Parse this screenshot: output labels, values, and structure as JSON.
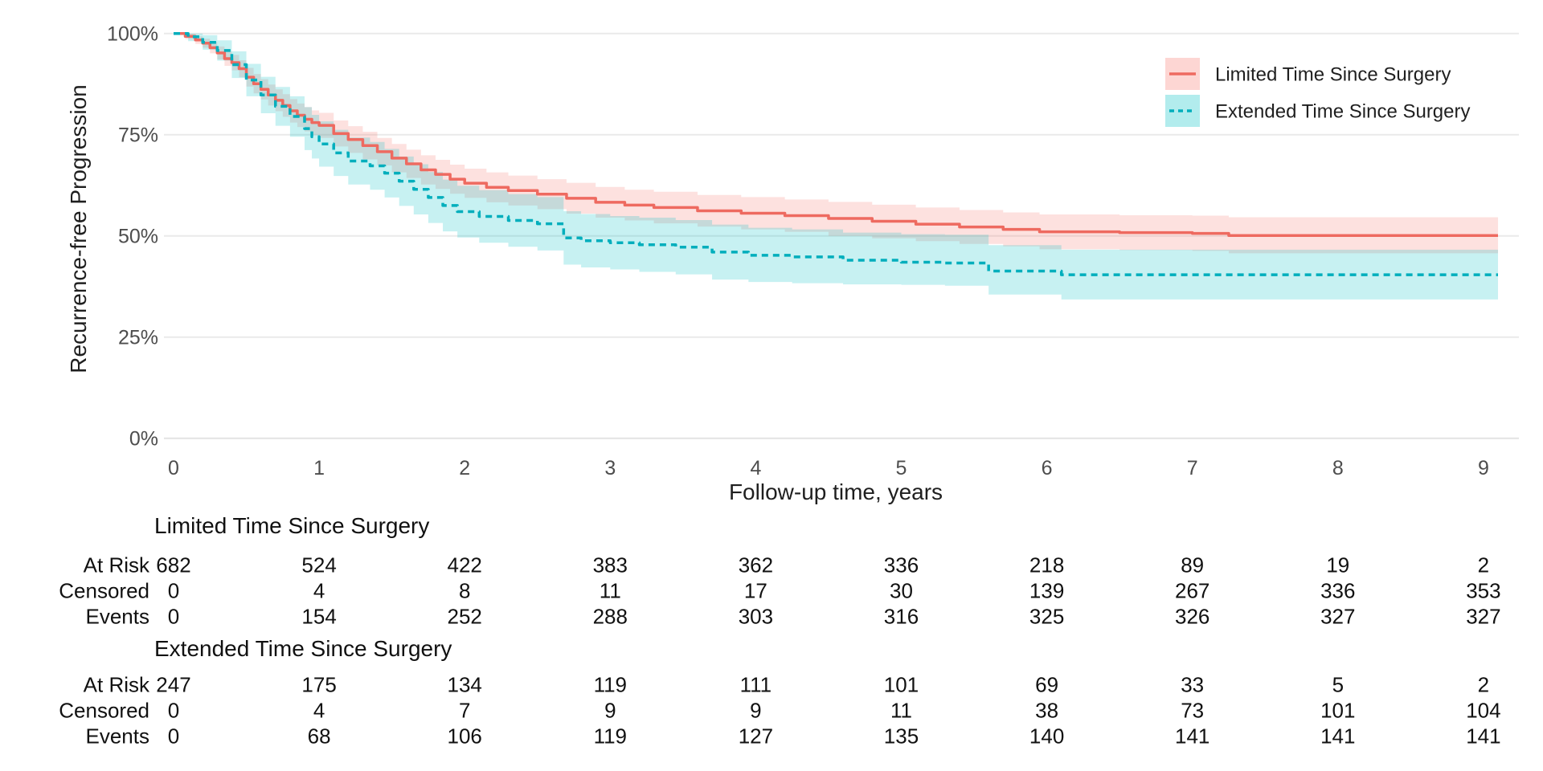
{
  "figure": {
    "title": "",
    "y_axis": {
      "title": "Recurrence-free Progression",
      "ticks": [
        "100%",
        "75%",
        "50%",
        "25%",
        "0%"
      ],
      "tick_values": [
        100,
        75,
        50,
        25,
        0
      ]
    },
    "x_axis": {
      "title": "Follow-up time, years",
      "ticks": [
        "0",
        "1",
        "2",
        "3",
        "4",
        "5",
        "6",
        "7",
        "8",
        "9"
      ],
      "tick_values": [
        0,
        1,
        2,
        3,
        4,
        5,
        6,
        7,
        8,
        9
      ]
    },
    "legend": [
      {
        "label": "Limited Time Since Surgery",
        "line_style": "solid"
      },
      {
        "label": "Extended Time Since Surgery",
        "line_style": "dashed"
      }
    ],
    "colors": {
      "limited_line": "#EE6A60",
      "limited_band": "rgba(248,118,109,0.22)",
      "extended_line": "#00AEBC",
      "extended_band": "rgba(0,191,196,0.22)",
      "grid": "#EAEAEA",
      "baseline_grid": "#E3E3E3",
      "axis_text": "#4D4D4D",
      "text": "#111111"
    }
  },
  "chart_data": {
    "type": "line",
    "subtype": "kaplan-meier-step-with-confidence-bands",
    "title": "",
    "xlabel": "Follow-up time, years",
    "ylabel": "Recurrence-free Progression",
    "xlim": [
      0,
      9.25
    ],
    "ylim": [
      0,
      100
    ],
    "y_unit": "percent",
    "grid": "horizontal-only",
    "legend_position": "top-right",
    "series": [
      {
        "name": "Limited Time Since Surgery",
        "color": "#EE6A60",
        "band_color": "rgba(248,118,109,0.22)",
        "dash": "solid",
        "points_format": [
          "time_years",
          "survival_pct",
          "ci_low_pct",
          "ci_high_pct"
        ],
        "points": [
          [
            0,
            100,
            100,
            100
          ],
          [
            0.08,
            99.3,
            98.6,
            99.9
          ],
          [
            0.15,
            98.4,
            97.4,
            99.3
          ],
          [
            0.2,
            97.6,
            96.5,
            98.7
          ],
          [
            0.25,
            96.5,
            95.1,
            97.9
          ],
          [
            0.3,
            95.2,
            93.6,
            96.8
          ],
          [
            0.35,
            93.8,
            92.0,
            95.6
          ],
          [
            0.4,
            92.8,
            90.9,
            94.7
          ],
          [
            0.45,
            91.3,
            89.2,
            93.4
          ],
          [
            0.5,
            89.2,
            86.9,
            91.5
          ],
          [
            0.55,
            87.6,
            85.2,
            90.0
          ],
          [
            0.6,
            86.2,
            83.7,
            88.7
          ],
          [
            0.65,
            84.8,
            82.2,
            87.4
          ],
          [
            0.7,
            83.5,
            80.8,
            86.2
          ],
          [
            0.75,
            82.2,
            79.4,
            85.0
          ],
          [
            0.8,
            80.9,
            78.0,
            83.8
          ],
          [
            0.85,
            79.8,
            76.9,
            82.7
          ],
          [
            0.9,
            78.8,
            75.8,
            81.8
          ],
          [
            0.95,
            78.0,
            75.0,
            81.0
          ],
          [
            1.0,
            77.3,
            74.2,
            80.4
          ],
          [
            1.1,
            75.3,
            72.1,
            78.5
          ],
          [
            1.2,
            73.8,
            70.5,
            77.1
          ],
          [
            1.3,
            72.3,
            68.9,
            75.7
          ],
          [
            1.4,
            70.8,
            67.4,
            74.2
          ],
          [
            1.5,
            69.2,
            65.7,
            72.7
          ],
          [
            1.6,
            67.8,
            64.3,
            71.3
          ],
          [
            1.7,
            66.3,
            62.7,
            69.9
          ],
          [
            1.8,
            65.2,
            61.6,
            68.8
          ],
          [
            1.9,
            64.0,
            60.4,
            67.6
          ],
          [
            2.0,
            63.0,
            59.4,
            66.6
          ],
          [
            2.15,
            62.0,
            58.3,
            65.7
          ],
          [
            2.3,
            61.2,
            57.5,
            64.9
          ],
          [
            2.5,
            60.3,
            56.6,
            64.0
          ],
          [
            2.7,
            59.3,
            55.5,
            63.1
          ],
          [
            2.9,
            58.3,
            54.5,
            62.1
          ],
          [
            3.1,
            57.6,
            53.8,
            61.4
          ],
          [
            3.3,
            57.0,
            53.1,
            60.9
          ],
          [
            3.6,
            56.2,
            52.3,
            60.1
          ],
          [
            3.9,
            55.6,
            51.6,
            59.6
          ],
          [
            4.2,
            55.0,
            51.0,
            59.0
          ],
          [
            4.5,
            54.3,
            50.0,
            58.4
          ],
          [
            4.8,
            53.6,
            49.4,
            57.7
          ],
          [
            5.1,
            52.9,
            48.7,
            57.0
          ],
          [
            5.4,
            52.2,
            48.0,
            56.4
          ],
          [
            5.7,
            51.6,
            47.4,
            55.8
          ],
          [
            5.95,
            51.0,
            46.7,
            55.3
          ],
          [
            6.5,
            50.8,
            46.5,
            55.1
          ],
          [
            7.0,
            50.6,
            46.3,
            55.0
          ],
          [
            7.25,
            50.1,
            45.7,
            54.6
          ],
          [
            9.1,
            50.1,
            45.7,
            54.6
          ]
        ]
      },
      {
        "name": "Extended Time Since Surgery",
        "color": "#00AEBC",
        "band_color": "rgba(0,191,196,0.22)",
        "dash": "dashed",
        "points_format": [
          "time_years",
          "survival_pct",
          "ci_low_pct",
          "ci_high_pct"
        ],
        "points": [
          [
            0,
            100,
            100,
            100
          ],
          [
            0.1,
            99.2,
            98.1,
            100
          ],
          [
            0.2,
            97.8,
            96.0,
            99.6
          ],
          [
            0.3,
            95.8,
            93.3,
            98.3
          ],
          [
            0.4,
            92.3,
            89.0,
            95.6
          ],
          [
            0.5,
            88.5,
            84.5,
            92.5
          ],
          [
            0.6,
            84.8,
            80.3,
            89.3
          ],
          [
            0.7,
            82.0,
            77.2,
            86.8
          ],
          [
            0.8,
            79.5,
            74.5,
            84.5
          ],
          [
            0.9,
            76.5,
            71.2,
            81.8
          ],
          [
            0.95,
            74.5,
            69.1,
            79.9
          ],
          [
            1.0,
            72.7,
            67.1,
            78.3
          ],
          [
            1.1,
            70.5,
            64.8,
            76.2
          ],
          [
            1.2,
            68.5,
            62.7,
            74.3
          ],
          [
            1.35,
            67.3,
            61.4,
            73.2
          ],
          [
            1.45,
            65.5,
            59.5,
            71.5
          ],
          [
            1.55,
            63.5,
            57.4,
            69.6
          ],
          [
            1.65,
            61.5,
            55.3,
            67.7
          ],
          [
            1.75,
            59.5,
            53.2,
            65.8
          ],
          [
            1.85,
            57.5,
            51.1,
            63.9
          ],
          [
            1.95,
            56.0,
            49.6,
            62.4
          ],
          [
            2.1,
            54.8,
            48.3,
            61.3
          ],
          [
            2.3,
            53.8,
            47.3,
            60.3
          ],
          [
            2.5,
            53.0,
            46.4,
            59.6
          ],
          [
            2.68,
            49.5,
            42.9,
            56.1
          ],
          [
            2.8,
            48.8,
            42.2,
            55.4
          ],
          [
            3.0,
            48.3,
            41.7,
            54.9
          ],
          [
            3.2,
            47.8,
            41.1,
            54.5
          ],
          [
            3.45,
            47.2,
            40.5,
            53.9
          ],
          [
            3.7,
            46.0,
            39.2,
            52.8
          ],
          [
            3.95,
            45.2,
            38.6,
            52.0
          ],
          [
            4.25,
            44.8,
            38.3,
            51.6
          ],
          [
            4.6,
            44.0,
            38.0,
            50.8
          ],
          [
            5.0,
            43.5,
            37.9,
            50.4
          ],
          [
            5.3,
            43.3,
            37.7,
            50.3
          ],
          [
            5.6,
            41.3,
            35.5,
            47.7
          ],
          [
            6.1,
            40.4,
            34.3,
            46.6
          ],
          [
            9.1,
            40.4,
            34.3,
            46.6
          ]
        ]
      }
    ]
  },
  "risk_table": {
    "time_points": [
      0,
      1,
      2,
      3,
      4,
      5,
      6,
      7,
      8,
      9
    ],
    "groups": [
      {
        "name": "Limited Time Since Surgery",
        "rows": [
          {
            "label": "At Risk",
            "values": [
              682,
              524,
              422,
              383,
              362,
              336,
              218,
              89,
              19,
              2
            ]
          },
          {
            "label": "Censored",
            "values": [
              0,
              4,
              8,
              11,
              17,
              30,
              139,
              267,
              336,
              353
            ]
          },
          {
            "label": "Events",
            "values": [
              0,
              154,
              252,
              288,
              303,
              316,
              325,
              326,
              327,
              327
            ]
          }
        ]
      },
      {
        "name": "Extended Time Since Surgery",
        "rows": [
          {
            "label": "At Risk",
            "values": [
              247,
              175,
              134,
              119,
              111,
              101,
              69,
              33,
              5,
              2
            ]
          },
          {
            "label": "Censored",
            "values": [
              0,
              4,
              7,
              9,
              9,
              11,
              38,
              73,
              101,
              104
            ]
          },
          {
            "label": "Events",
            "values": [
              0,
              68,
              106,
              119,
              127,
              135,
              140,
              141,
              141,
              141
            ]
          }
        ]
      }
    ]
  }
}
